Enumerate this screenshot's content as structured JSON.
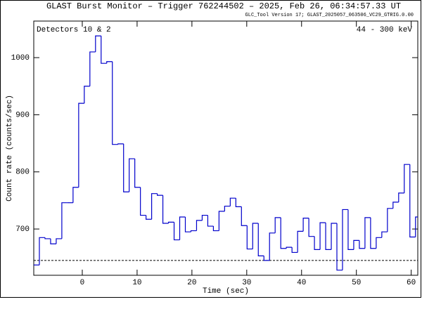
{
  "chart_data": {
    "type": "histogram",
    "title": "GLAST Burst Monitor  –  Trigger 762244502  –  2025, Feb 26, 06:34:57.33 UT",
    "subtitle": "GLC_Tool Version 17; GLAST_2025057_063506_VC29_GTRIG.0.00",
    "annotations": [
      "Detectors 10 & 2",
      "44 - 300 keV"
    ],
    "xlabel": "Time (sec)",
    "ylabel": "Count rate (counts/sec)",
    "bins": [
      -8.85,
      -7.826,
      -6.802,
      -5.778,
      -4.754,
      -3.73,
      -2.706,
      -1.682,
      -0.658,
      0.366,
      1.39,
      2.414,
      3.438,
      4.462,
      5.486,
      6.51,
      7.534,
      8.558,
      9.582,
      10.606,
      11.63,
      12.654,
      13.678,
      14.702,
      15.726,
      16.75,
      17.774,
      18.798,
      19.822,
      20.846,
      21.87,
      22.894,
      23.918,
      24.942,
      25.966,
      26.99,
      28.014,
      29.038,
      30.062,
      31.086,
      32.11,
      33.134,
      34.158,
      35.182,
      36.206,
      37.23,
      38.254,
      39.278,
      40.302,
      41.326,
      42.35,
      43.374,
      44.398,
      45.422,
      46.446,
      47.47,
      48.494,
      49.518,
      50.542,
      51.566,
      52.59,
      53.614,
      54.638,
      55.662,
      56.686,
      57.71,
      58.734,
      59.758,
      60.782,
      61.806
    ],
    "values": [
      637,
      685,
      683,
      674,
      683,
      746,
      746,
      773,
      920,
      950,
      1010,
      1038,
      990,
      993,
      848,
      849,
      765,
      823,
      773,
      724,
      717,
      762,
      759,
      710,
      712,
      681,
      721,
      695,
      697,
      715,
      724,
      705,
      697,
      731,
      740,
      754,
      739,
      706,
      665,
      710,
      653,
      645,
      693,
      720,
      666,
      668,
      659,
      696,
      719,
      687,
      664,
      711,
      664,
      710,
      628,
      734,
      664,
      680,
      666,
      720,
      666,
      685,
      695,
      736,
      747,
      763,
      813,
      686,
      721
    ],
    "color": "#0000cc",
    "background_level": 645,
    "xlim": [
      -8.85,
      61.2
    ],
    "ylim": [
      619,
      1064
    ],
    "xticks": [
      0,
      10,
      20,
      30,
      40,
      50,
      60
    ],
    "yticks": [
      700,
      800,
      900,
      1000
    ]
  }
}
